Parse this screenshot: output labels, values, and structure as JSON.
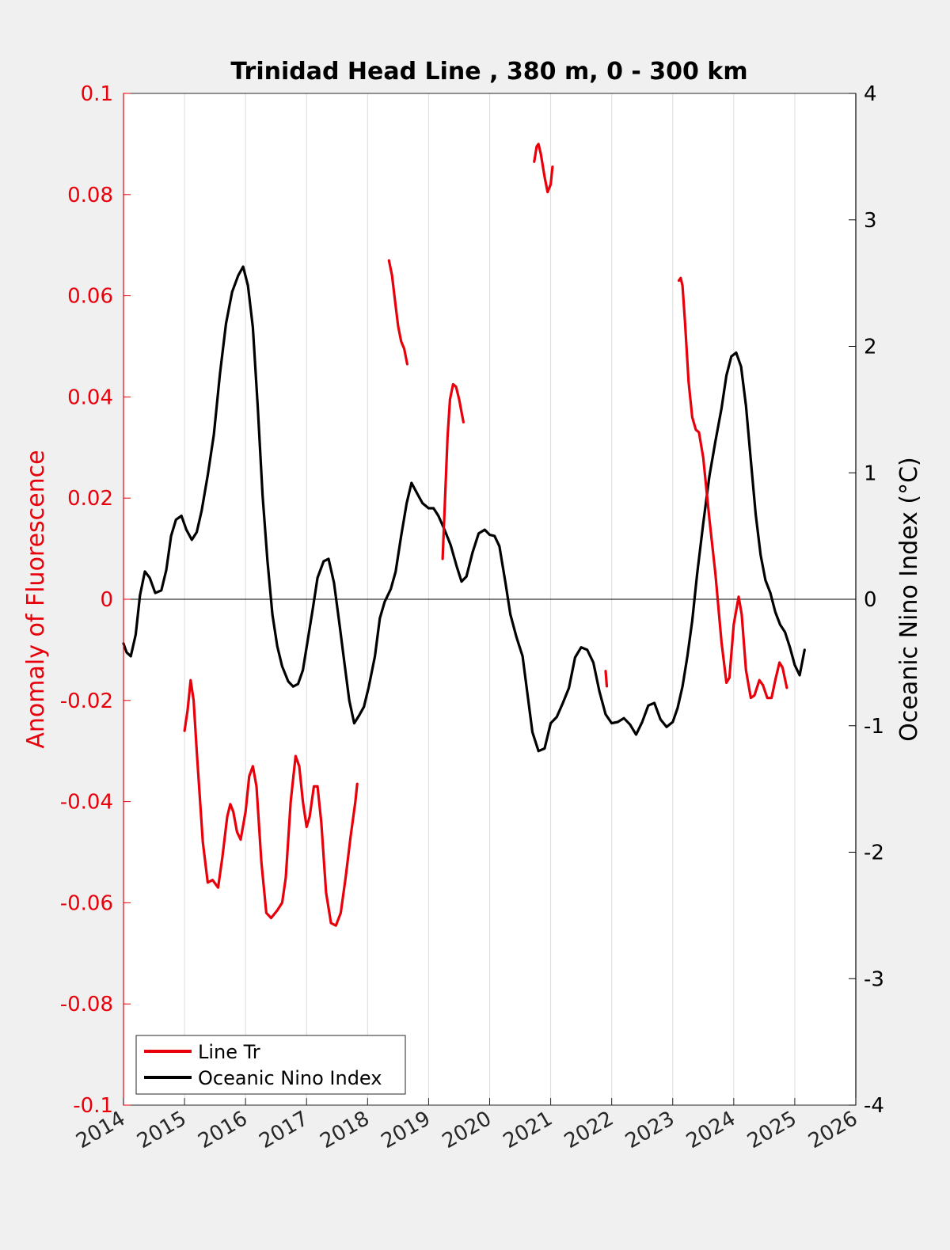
{
  "chart_data": {
    "type": "line",
    "title": "Trinidad Head Line , 380 m, 0 - 300 km",
    "xlabel": "",
    "ylabel_left": "Anomaly of Fluorescence",
    "ylabel_right": "Oceanic Nino Index (°C)",
    "xlim": [
      2014,
      2026
    ],
    "ylim_left": [
      -0.1,
      0.1
    ],
    "ylim_right": [
      -4,
      4
    ],
    "x_ticks": [
      2014,
      2015,
      2016,
      2017,
      2018,
      2019,
      2020,
      2021,
      2022,
      2023,
      2024,
      2025,
      2026
    ],
    "x_tick_labels": [
      "2014",
      "2015",
      "2016",
      "2017",
      "2018",
      "2019",
      "2020",
      "2021",
      "2022",
      "2023",
      "2024",
      "2025",
      "2026"
    ],
    "y_left_ticks": [
      -0.1,
      -0.08,
      -0.06,
      -0.04,
      -0.02,
      0,
      0.02,
      0.04,
      0.06,
      0.08,
      0.1
    ],
    "y_left_tick_labels": [
      "-0.1",
      "-0.08",
      "-0.06",
      "-0.04",
      "-0.02",
      "0",
      "0.02",
      "0.04",
      "0.06",
      "0.08",
      "0.1"
    ],
    "y_right_ticks": [
      -4,
      -3,
      -2,
      -1,
      0,
      1,
      2,
      3,
      4
    ],
    "y_right_tick_labels": [
      "-4",
      "-3",
      "-2",
      "-1",
      "0",
      "1",
      "2",
      "3",
      "4"
    ],
    "grid": "vertical",
    "legend_position": "bottom-left",
    "colors": {
      "fluorescence": "#e8000b",
      "oni": "#000000",
      "left_axis": "#e8000b",
      "right_axis": "#000000"
    },
    "series": [
      {
        "name": "Line Tr",
        "axis": "left",
        "color": "#e8000b",
        "segments": [
          [
            [
              2015.0,
              -0.026
            ],
            [
              2015.05,
              -0.022
            ],
            [
              2015.1,
              -0.016
            ],
            [
              2015.15,
              -0.02
            ],
            [
              2015.2,
              -0.03
            ],
            [
              2015.3,
              -0.048
            ],
            [
              2015.38,
              -0.056
            ],
            [
              2015.46,
              -0.0555
            ],
            [
              2015.55,
              -0.057
            ],
            [
              2015.62,
              -0.051
            ],
            [
              2015.7,
              -0.043
            ],
            [
              2015.75,
              -0.0405
            ],
            [
              2015.8,
              -0.042
            ],
            [
              2015.86,
              -0.046
            ],
            [
              2015.92,
              -0.0475
            ],
            [
              2016.0,
              -0.042
            ],
            [
              2016.06,
              -0.035
            ],
            [
              2016.12,
              -0.033
            ],
            [
              2016.18,
              -0.037
            ],
            [
              2016.26,
              -0.052
            ],
            [
              2016.34,
              -0.062
            ],
            [
              2016.42,
              -0.063
            ],
            [
              2016.52,
              -0.0615
            ],
            [
              2016.6,
              -0.06
            ],
            [
              2016.66,
              -0.055
            ],
            [
              2016.74,
              -0.04
            ],
            [
              2016.82,
              -0.031
            ],
            [
              2016.88,
              -0.033
            ],
            [
              2016.94,
              -0.04
            ],
            [
              2017.0,
              -0.045
            ],
            [
              2017.05,
              -0.043
            ],
            [
              2017.12,
              -0.037
            ],
            [
              2017.18,
              -0.037
            ],
            [
              2017.24,
              -0.044
            ],
            [
              2017.32,
              -0.058
            ],
            [
              2017.4,
              -0.064
            ],
            [
              2017.48,
              -0.0645
            ],
            [
              2017.56,
              -0.062
            ],
            [
              2017.64,
              -0.055
            ],
            [
              2017.72,
              -0.047
            ],
            [
              2017.8,
              -0.04
            ],
            [
              2017.83,
              -0.0365
            ]
          ],
          [
            [
              2018.35,
              0.067
            ],
            [
              2018.4,
              0.064
            ],
            [
              2018.45,
              0.059
            ],
            [
              2018.5,
              0.054
            ],
            [
              2018.55,
              0.051
            ],
            [
              2018.6,
              0.0495
            ],
            [
              2018.65,
              0.0465
            ]
          ],
          [
            [
              2019.23,
              0.008
            ],
            [
              2019.27,
              0.02
            ],
            [
              2019.31,
              0.032
            ],
            [
              2019.35,
              0.0395
            ],
            [
              2019.4,
              0.0425
            ],
            [
              2019.45,
              0.042
            ],
            [
              2019.5,
              0.0395
            ],
            [
              2019.57,
              0.035
            ]
          ],
          [
            [
              2020.73,
              0.0865
            ],
            [
              2020.77,
              0.0895
            ],
            [
              2020.8,
              0.09
            ],
            [
              2020.84,
              0.088
            ],
            [
              2020.9,
              0.0835
            ],
            [
              2020.95,
              0.0805
            ],
            [
              2021.0,
              0.082
            ],
            [
              2021.03,
              0.0855
            ]
          ],
          [
            [
              2021.9,
              -0.0142
            ],
            [
              2021.92,
              -0.0172
            ]
          ],
          [
            [
              2023.1,
              0.063
            ],
            [
              2023.13,
              0.0635
            ],
            [
              2023.16,
              0.062
            ],
            [
              2023.2,
              0.055
            ],
            [
              2023.26,
              0.043
            ],
            [
              2023.32,
              0.036
            ],
            [
              2023.38,
              0.0335
            ],
            [
              2023.43,
              0.033
            ],
            [
              2023.5,
              0.028
            ],
            [
              2023.6,
              0.016
            ],
            [
              2023.7,
              0.005
            ],
            [
              2023.8,
              -0.0085
            ],
            [
              2023.88,
              -0.0165
            ],
            [
              2023.93,
              -0.0155
            ],
            [
              2024.0,
              -0.005
            ],
            [
              2024.08,
              0.0005
            ],
            [
              2024.13,
              -0.003
            ],
            [
              2024.2,
              -0.014
            ],
            [
              2024.28,
              -0.0195
            ],
            [
              2024.34,
              -0.019
            ],
            [
              2024.42,
              -0.016
            ],
            [
              2024.48,
              -0.017
            ],
            [
              2024.55,
              -0.0195
            ],
            [
              2024.62,
              -0.0195
            ],
            [
              2024.68,
              -0.016
            ],
            [
              2024.75,
              -0.0125
            ],
            [
              2024.8,
              -0.0135
            ],
            [
              2024.87,
              -0.0175
            ]
          ]
        ]
      },
      {
        "name": "Oceanic Nino Index",
        "axis": "right",
        "color": "#000000",
        "points": [
          [
            2014.0,
            -0.35
          ],
          [
            2014.05,
            -0.42
          ],
          [
            2014.12,
            -0.45
          ],
          [
            2014.2,
            -0.28
          ],
          [
            2014.27,
            0.03
          ],
          [
            2014.35,
            0.22
          ],
          [
            2014.43,
            0.17
          ],
          [
            2014.52,
            0.05
          ],
          [
            2014.62,
            0.07
          ],
          [
            2014.7,
            0.23
          ],
          [
            2014.78,
            0.5
          ],
          [
            2014.86,
            0.63
          ],
          [
            2014.95,
            0.66
          ],
          [
            2015.03,
            0.55
          ],
          [
            2015.12,
            0.47
          ],
          [
            2015.2,
            0.53
          ],
          [
            2015.28,
            0.7
          ],
          [
            2015.38,
            0.98
          ],
          [
            2015.48,
            1.3
          ],
          [
            2015.58,
            1.78
          ],
          [
            2015.68,
            2.18
          ],
          [
            2015.78,
            2.43
          ],
          [
            2015.88,
            2.56
          ],
          [
            2015.96,
            2.63
          ],
          [
            2016.04,
            2.48
          ],
          [
            2016.12,
            2.15
          ],
          [
            2016.2,
            1.52
          ],
          [
            2016.28,
            0.82
          ],
          [
            2016.36,
            0.3
          ],
          [
            2016.44,
            -0.12
          ],
          [
            2016.52,
            -0.37
          ],
          [
            2016.6,
            -0.53
          ],
          [
            2016.7,
            -0.65
          ],
          [
            2016.78,
            -0.69
          ],
          [
            2016.86,
            -0.67
          ],
          [
            2016.94,
            -0.56
          ],
          [
            2017.02,
            -0.32
          ],
          [
            2017.1,
            -0.08
          ],
          [
            2017.18,
            0.17
          ],
          [
            2017.28,
            0.3
          ],
          [
            2017.36,
            0.32
          ],
          [
            2017.45,
            0.13
          ],
          [
            2017.54,
            -0.2
          ],
          [
            2017.62,
            -0.5
          ],
          [
            2017.7,
            -0.8
          ],
          [
            2017.78,
            -0.98
          ],
          [
            2017.86,
            -0.92
          ],
          [
            2017.94,
            -0.85
          ],
          [
            2018.02,
            -0.69
          ],
          [
            2018.12,
            -0.45
          ],
          [
            2018.2,
            -0.15
          ],
          [
            2018.28,
            -0.02
          ],
          [
            2018.38,
            0.08
          ],
          [
            2018.46,
            0.22
          ],
          [
            2018.55,
            0.5
          ],
          [
            2018.64,
            0.76
          ],
          [
            2018.72,
            0.92
          ],
          [
            2018.82,
            0.83
          ],
          [
            2018.9,
            0.76
          ],
          [
            2019.0,
            0.72
          ],
          [
            2019.08,
            0.72
          ],
          [
            2019.16,
            0.66
          ],
          [
            2019.26,
            0.55
          ],
          [
            2019.36,
            0.43
          ],
          [
            2019.46,
            0.26
          ],
          [
            2019.54,
            0.14
          ],
          [
            2019.62,
            0.18
          ],
          [
            2019.72,
            0.37
          ],
          [
            2019.82,
            0.52
          ],
          [
            2019.92,
            0.55
          ],
          [
            2020.0,
            0.51
          ],
          [
            2020.08,
            0.5
          ],
          [
            2020.16,
            0.42
          ],
          [
            2020.26,
            0.13
          ],
          [
            2020.34,
            -0.12
          ],
          [
            2020.44,
            -0.3
          ],
          [
            2020.54,
            -0.45
          ],
          [
            2020.62,
            -0.75
          ],
          [
            2020.7,
            -1.05
          ],
          [
            2020.8,
            -1.2
          ],
          [
            2020.9,
            -1.18
          ],
          [
            2021.0,
            -0.98
          ],
          [
            2021.1,
            -0.93
          ],
          [
            2021.2,
            -0.82
          ],
          [
            2021.3,
            -0.7
          ],
          [
            2021.4,
            -0.46
          ],
          [
            2021.5,
            -0.38
          ],
          [
            2021.6,
            -0.4
          ],
          [
            2021.7,
            -0.5
          ],
          [
            2021.8,
            -0.73
          ],
          [
            2021.9,
            -0.91
          ],
          [
            2022.0,
            -0.98
          ],
          [
            2022.1,
            -0.97
          ],
          [
            2022.2,
            -0.94
          ],
          [
            2022.3,
            -0.99
          ],
          [
            2022.4,
            -1.07
          ],
          [
            2022.5,
            -0.97
          ],
          [
            2022.6,
            -0.84
          ],
          [
            2022.7,
            -0.82
          ],
          [
            2022.8,
            -0.95
          ],
          [
            2022.9,
            -1.01
          ],
          [
            2023.0,
            -0.97
          ],
          [
            2023.08,
            -0.86
          ],
          [
            2023.16,
            -0.69
          ],
          [
            2023.24,
            -0.45
          ],
          [
            2023.32,
            -0.17
          ],
          [
            2023.4,
            0.2
          ],
          [
            2023.5,
            0.6
          ],
          [
            2023.6,
            0.97
          ],
          [
            2023.7,
            1.25
          ],
          [
            2023.8,
            1.51
          ],
          [
            2023.88,
            1.77
          ],
          [
            2023.96,
            1.92
          ],
          [
            2024.04,
            1.95
          ],
          [
            2024.12,
            1.84
          ],
          [
            2024.2,
            1.53
          ],
          [
            2024.28,
            1.1
          ],
          [
            2024.36,
            0.67
          ],
          [
            2024.44,
            0.35
          ],
          [
            2024.52,
            0.15
          ],
          [
            2024.6,
            0.05
          ],
          [
            2024.68,
            -0.1
          ],
          [
            2024.76,
            -0.2
          ],
          [
            2024.84,
            -0.26
          ],
          [
            2024.92,
            -0.38
          ],
          [
            2025.0,
            -0.52
          ],
          [
            2025.08,
            -0.6
          ],
          [
            2025.16,
            -0.4
          ]
        ]
      }
    ]
  }
}
